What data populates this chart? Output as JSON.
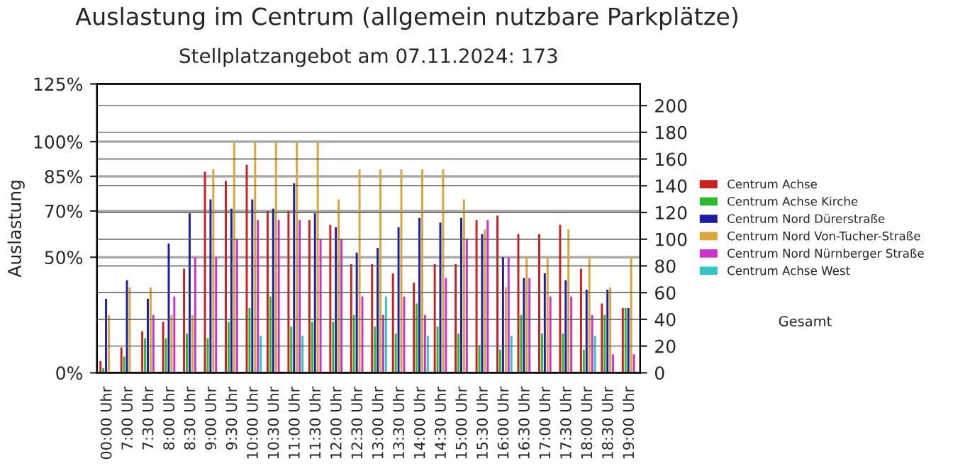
{
  "chart_data": {
    "type": "bar",
    "title": "Auslastung im Centrum (allgemein nutzbare Parkplätze)",
    "subtitle": "Stellplatzangebot am 07.11.2024: 173",
    "ylabel": "Auslastung",
    "categories": [
      "00:00 Uhr",
      "7:00 Uhr",
      "7:30 Uhr",
      "8:00 Uhr",
      "8:30 Uhr",
      "9:00 Uhr",
      "9:30 Uhr",
      "10:00 Uhr",
      "10:30 Uhr",
      "11:00 Uhr",
      "11:30 Uhr",
      "12:00 Uhr",
      "12:30 Uhr",
      "13:00 Uhr",
      "13:30 Uhr",
      "14:00 Uhr",
      "14:30 Uhr",
      "15:00 Uhr",
      "15:30 Uhr",
      "16:00 Uhr",
      "16:30 Uhr",
      "17:00 Uhr",
      "17:30 Uhr",
      "18:00 Uhr",
      "18:30 Uhr",
      "19:00 Uhr"
    ],
    "series": [
      {
        "name": "Centrum Achse",
        "color": "#cc1f1f",
        "values": [
          5,
          11,
          18,
          22,
          45,
          87,
          83,
          90,
          70,
          70,
          66,
          64,
          47,
          47,
          43,
          39,
          47,
          47,
          66,
          68,
          60,
          60,
          64,
          45,
          30,
          28
        ]
      },
      {
        "name": "Centrum Achse Kirche",
        "color": "#2dbb2d",
        "values": [
          2,
          7,
          15,
          15,
          17,
          15,
          22,
          28,
          33,
          20,
          22,
          22,
          25,
          20,
          17,
          30,
          20,
          17,
          12,
          10,
          25,
          17,
          17,
          10,
          25,
          28
        ]
      },
      {
        "name": "Centrum Nord Dürerstraße",
        "color": "#1c1ca6",
        "values": [
          32,
          40,
          32,
          56,
          69,
          75,
          71,
          75,
          71,
          82,
          69,
          63,
          52,
          54,
          63,
          67,
          65,
          67,
          60,
          50,
          41,
          43,
          40,
          36,
          36,
          28
        ]
      },
      {
        "name": "Centrum Nord Von-Tucher-Straße",
        "color": "#dba53a",
        "values": [
          25,
          37,
          37,
          25,
          25,
          88,
          100,
          100,
          100,
          100,
          100,
          75,
          88,
          88,
          88,
          88,
          88,
          75,
          62,
          37,
          50,
          50,
          62,
          50,
          37,
          50
        ]
      },
      {
        "name": "Centrum Nord Nürnberger Straße",
        "color": "#cc33cc",
        "values": [
          null,
          null,
          25,
          33,
          50,
          50,
          58,
          66,
          66,
          66,
          58,
          58,
          33,
          25,
          33,
          25,
          41,
          58,
          66,
          50,
          41,
          33,
          33,
          25,
          8,
          8
        ]
      },
      {
        "name": "Centrum Achse West",
        "color": "#33c4c4",
        "values": [
          null,
          null,
          null,
          null,
          null,
          null,
          null,
          16,
          null,
          16,
          null,
          null,
          null,
          33,
          null,
          16,
          null,
          null,
          null,
          16,
          null,
          null,
          null,
          16,
          null,
          null
        ]
      }
    ],
    "ylim": [
      0,
      125
    ],
    "yticks": [
      {
        "value": 0,
        "label": "0%"
      },
      {
        "value": 50,
        "label": "50%"
      },
      {
        "value": 70,
        "label": "70%"
      },
      {
        "value": 85,
        "label": "85%"
      },
      {
        "value": 100,
        "label": "100%"
      },
      {
        "value": 125,
        "label": "125%"
      }
    ],
    "y2lim": [
      0,
      216.25
    ],
    "y2ticks": [
      0,
      20,
      40,
      60,
      80,
      100,
      120,
      140,
      160,
      180,
      200
    ],
    "grid": "y",
    "legend": "right",
    "annotations": [
      "Gesamt"
    ]
  }
}
